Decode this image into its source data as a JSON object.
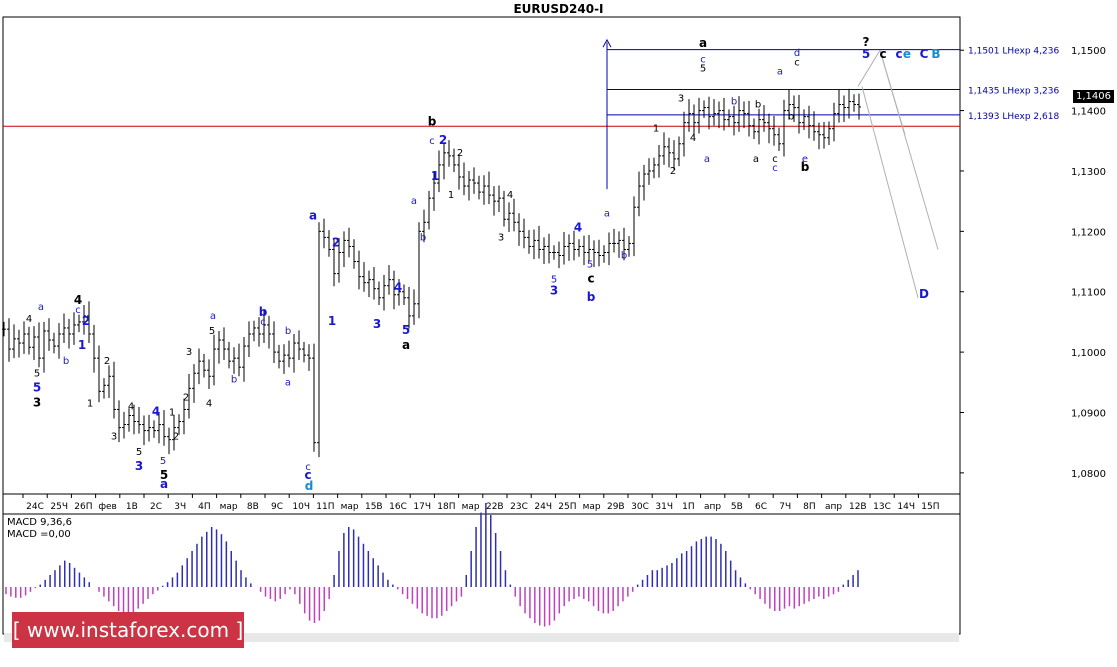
{
  "title": "EURUSD240-I",
  "current_price": "1,1406",
  "macd": {
    "label_line1": "MACD 9,36,6",
    "label_line2": "MACD =0,00"
  },
  "watermark": "[ www.instaforex.com ]",
  "colors": {
    "price_line": "#cc0000",
    "level_line": "#0000aa",
    "macd_positive": "#2f2fb0",
    "macd_negative": "#c040c0",
    "wave_blue": "#1a1acc",
    "wave_cyan": "#1a8ad0",
    "watermark_bg": "#cc3344"
  },
  "chart_data": {
    "type": "candlestick",
    "symbol": "EURUSD240-I",
    "y_ticks": [
      "1,1500",
      "1,1400",
      "1,1300",
      "1,1200",
      "1,1100",
      "1,1000",
      "1,0900",
      "1,0800"
    ],
    "ylim": [
      1.0765,
      1.1555
    ],
    "x_ticks": [
      "24С",
      "25Ч",
      "26П",
      "фев",
      "1В",
      "2С",
      "3Ч",
      "4П",
      "мар",
      "8В",
      "9С",
      "10Ч",
      "11П",
      "мар",
      "15В",
      "16С",
      "17Ч",
      "18П",
      "мар",
      "22В",
      "23С",
      "24Ч",
      "25П",
      "мар",
      "29В",
      "30С",
      "31Ч",
      "1П",
      "апр",
      "5В",
      "6С",
      "7Ч",
      "8П",
      "апр",
      "12В",
      "13С",
      "14Ч",
      "15П"
    ],
    "levels": [
      {
        "price": 1.1501,
        "label": "1,1501 LHexp 4,236"
      },
      {
        "price": 1.1435,
        "label": "1,1435 LHexp 3,236"
      },
      {
        "price": 1.1393,
        "label": "1,1393 LHexp 2,618"
      }
    ],
    "horizontal_line": 1.1374,
    "price_series": [
      [
        0,
        1.1038
      ],
      [
        5,
        1.1005
      ],
      [
        10,
        1.1022
      ],
      [
        15,
        1.1015
      ],
      [
        20,
        1.103
      ],
      [
        25,
        1.1008
      ],
      [
        30,
        1.1025
      ],
      [
        35,
        1.099
      ],
      [
        40,
        1.1035
      ],
      [
        45,
        1.102
      ],
      [
        50,
        1.101
      ],
      [
        55,
        1.103
      ],
      [
        60,
        1.104
      ],
      [
        65,
        1.103
      ],
      [
        70,
        1.1045
      ],
      [
        75,
        1.105
      ],
      [
        80,
        1.106
      ],
      [
        85,
        1.103
      ],
      [
        90,
        1.099
      ],
      [
        95,
        1.0935
      ],
      [
        100,
        1.0945
      ],
      [
        105,
        1.096
      ],
      [
        110,
        1.0905
      ],
      [
        115,
        1.0875
      ],
      [
        120,
        1.088
      ],
      [
        125,
        1.0895
      ],
      [
        130,
        1.0885
      ],
      [
        135,
        1.088
      ],
      [
        140,
        1.087
      ],
      [
        145,
        1.0875
      ],
      [
        150,
        1.087
      ],
      [
        155,
        1.088
      ],
      [
        160,
        1.086
      ],
      [
        165,
        1.0855
      ],
      [
        170,
        1.0875
      ],
      [
        175,
        1.0885
      ],
      [
        180,
        1.0905
      ],
      [
        185,
        1.094
      ],
      [
        190,
        1.0965
      ],
      [
        195,
        1.0985
      ],
      [
        200,
        1.097
      ],
      [
        205,
        1.096
      ],
      [
        210,
        1.1005
      ],
      [
        215,
        1.102
      ],
      [
        220,
        1.1005
      ],
      [
        225,
        1.0985
      ],
      [
        230,
        1.099
      ],
      [
        235,
        1.0975
      ],
      [
        240,
        1.101
      ],
      [
        245,
        1.103
      ],
      [
        250,
        1.104
      ],
      [
        255,
        1.103
      ],
      [
        260,
        1.1045
      ],
      [
        265,
        1.103
      ],
      [
        270,
        1.1
      ],
      [
        275,
        1.0985
      ],
      [
        280,
        1.0995
      ],
      [
        285,
        1.099
      ],
      [
        290,
        1.1015
      ],
      [
        295,
        1.1005
      ],
      [
        300,
        1.0995
      ],
      [
        305,
        1.099
      ],
      [
        310,
        1.085
      ],
      [
        315,
        1.12
      ],
      [
        320,
        1.119
      ],
      [
        325,
        1.117
      ],
      [
        330,
        1.113
      ],
      [
        335,
        1.1165
      ],
      [
        340,
        1.1185
      ],
      [
        345,
        1.1175
      ],
      [
        350,
        1.115
      ],
      [
        355,
        1.1125
      ],
      [
        360,
        1.1115
      ],
      [
        365,
        1.112
      ],
      [
        370,
        1.1105
      ],
      [
        375,
        1.109
      ],
      [
        380,
        1.111
      ],
      [
        385,
        1.112
      ],
      [
        390,
        1.1095
      ],
      [
        395,
        1.11
      ],
      [
        400,
        1.109
      ],
      [
        405,
        1.106
      ],
      [
        410,
        1.108
      ],
      [
        415,
        1.12
      ],
      [
        420,
        1.1215
      ],
      [
        425,
        1.1255
      ],
      [
        430,
        1.128
      ],
      [
        435,
        1.131
      ],
      [
        440,
        1.133
      ],
      [
        445,
        1.1325
      ],
      [
        450,
        1.131
      ],
      [
        455,
        1.129
      ],
      [
        460,
        1.1275
      ],
      [
        465,
        1.1285
      ],
      [
        470,
        1.128
      ],
      [
        475,
        1.1265
      ],
      [
        480,
        1.1275
      ],
      [
        485,
        1.126
      ],
      [
        490,
        1.125
      ],
      [
        495,
        1.1255
      ],
      [
        500,
        1.122
      ],
      [
        505,
        1.123
      ],
      [
        510,
        1.1215
      ],
      [
        515,
        1.12
      ],
      [
        520,
        1.119
      ],
      [
        525,
        1.1175
      ],
      [
        530,
        1.1185
      ],
      [
        535,
        1.117
      ],
      [
        540,
        1.1175
      ],
      [
        545,
        1.1165
      ],
      [
        550,
        1.1165
      ],
      [
        555,
        1.116
      ],
      [
        560,
        1.1175
      ],
      [
        565,
        1.118
      ],
      [
        570,
        1.117
      ],
      [
        575,
        1.1175
      ],
      [
        580,
        1.1165
      ],
      [
        585,
        1.117
      ],
      [
        590,
        1.1165
      ],
      [
        595,
        1.116
      ],
      [
        600,
        1.1165
      ],
      [
        605,
        1.118
      ],
      [
        610,
        1.118
      ],
      [
        615,
        1.1185
      ],
      [
        620,
        1.117
      ],
      [
        625,
        1.118
      ],
      [
        630,
        1.124
      ],
      [
        635,
        1.1275
      ],
      [
        640,
        1.1295
      ],
      [
        645,
        1.13
      ],
      [
        650,
        1.131
      ],
      [
        655,
        1.1325
      ],
      [
        660,
        1.134
      ],
      [
        665,
        1.133
      ],
      [
        670,
        1.132
      ],
      [
        675,
        1.1345
      ],
      [
        680,
        1.138
      ],
      [
        685,
        1.1395
      ],
      [
        690,
        1.138
      ],
      [
        695,
        1.14
      ],
      [
        700,
        1.1405
      ],
      [
        705,
        1.139
      ],
      [
        710,
        1.1395
      ],
      [
        715,
        1.14
      ],
      [
        720,
        1.1385
      ],
      [
        725,
        1.139
      ],
      [
        730,
        1.138
      ],
      [
        735,
        1.14
      ],
      [
        740,
        1.1395
      ],
      [
        745,
        1.1375
      ],
      [
        750,
        1.1365
      ],
      [
        755,
        1.1385
      ],
      [
        760,
        1.138
      ],
      [
        765,
        1.137
      ],
      [
        770,
        1.136
      ],
      [
        775,
        1.1345
      ],
      [
        780,
        1.14
      ],
      [
        785,
        1.141
      ],
      [
        790,
        1.1405
      ],
      [
        795,
        1.138
      ],
      [
        800,
        1.139
      ],
      [
        805,
        1.1375
      ],
      [
        810,
        1.1365
      ],
      [
        815,
        1.136
      ],
      [
        820,
        1.1355
      ],
      [
        825,
        1.137
      ],
      [
        830,
        1.1395
      ],
      [
        835,
        1.141
      ],
      [
        840,
        1.1405
      ],
      [
        845,
        1.1415
      ],
      [
        850,
        1.141
      ],
      [
        855,
        1.1406
      ]
    ],
    "wave_labels": [
      {
        "t": "4",
        "x": 29,
        "y": 1.105,
        "c": "k"
      },
      {
        "t": "a",
        "x": 41,
        "y": 1.107,
        "c": "b"
      },
      {
        "t": "5",
        "x": 37,
        "y": 1.096,
        "c": "k"
      },
      {
        "t": "5",
        "x": 37,
        "y": 1.0935,
        "c": "b",
        "big": 1
      },
      {
        "t": "3",
        "x": 37,
        "y": 1.091,
        "c": "k",
        "big": 1
      },
      {
        "t": "4",
        "x": 78,
        "y": 1.108,
        "c": "k",
        "big": 1
      },
      {
        "t": "c",
        "x": 78,
        "y": 1.1065,
        "c": "b"
      },
      {
        "t": "2",
        "x": 86,
        "y": 1.1045,
        "c": "b",
        "big": 1
      },
      {
        "t": "b",
        "x": 66,
        "y": 1.098,
        "c": "b"
      },
      {
        "t": "1",
        "x": 82,
        "y": 1.1005,
        "c": "b",
        "big": 1
      },
      {
        "t": "2",
        "x": 107,
        "y": 1.098,
        "c": "k"
      },
      {
        "t": "1",
        "x": 90,
        "y": 1.091,
        "c": "k"
      },
      {
        "t": "4",
        "x": 131,
        "y": 1.0905,
        "c": "k"
      },
      {
        "t": "3",
        "x": 114,
        "y": 1.0855,
        "c": "k"
      },
      {
        "t": "5",
        "x": 139,
        "y": 1.083,
        "c": "k"
      },
      {
        "t": "3",
        "x": 139,
        "y": 1.0805,
        "c": "b",
        "big": 1
      },
      {
        "t": "4",
        "x": 156,
        "y": 1.0895,
        "c": "b",
        "big": 1
      },
      {
        "t": "1",
        "x": 172,
        "y": 1.0895,
        "c": "k"
      },
      {
        "t": "2",
        "x": 176,
        "y": 1.0855,
        "c": "k"
      },
      {
        "t": "5",
        "x": 163,
        "y": 1.0815,
        "c": "b"
      },
      {
        "t": "5",
        "x": 164,
        "y": 1.079,
        "c": "k",
        "big": 1
      },
      {
        "t": "a",
        "x": 164,
        "y": 1.0775,
        "c": "b",
        "big": 1
      },
      {
        "t": "3",
        "x": 189,
        "y": 1.0995,
        "c": "k"
      },
      {
        "t": "2",
        "x": 186,
        "y": 1.092,
        "c": "k"
      },
      {
        "t": "a",
        "x": 213,
        "y": 1.1055,
        "c": "b"
      },
      {
        "t": "5",
        "x": 212,
        "y": 1.103,
        "c": "k"
      },
      {
        "t": "4",
        "x": 209,
        "y": 1.091,
        "c": "k"
      },
      {
        "t": "b",
        "x": 234,
        "y": 1.095,
        "c": "b"
      },
      {
        "t": "b",
        "x": 263,
        "y": 1.106,
        "c": "b",
        "big": 1
      },
      {
        "t": "c",
        "x": 263,
        "y": 1.1045,
        "c": "b"
      },
      {
        "t": "b",
        "x": 288,
        "y": 1.103,
        "c": "b"
      },
      {
        "t": "a",
        "x": 288,
        "y": 1.0945,
        "c": "b"
      },
      {
        "t": "c",
        "x": 308,
        "y": 1.0805,
        "c": "b"
      },
      {
        "t": "c",
        "x": 308,
        "y": 1.079,
        "c": "b",
        "big": 1
      },
      {
        "t": "d",
        "x": 309,
        "y": 1.0772,
        "c": "c",
        "big": 1
      },
      {
        "t": "a",
        "x": 313,
        "y": 1.122,
        "c": "b",
        "big": 1
      },
      {
        "t": "2",
        "x": 336,
        "y": 1.1175,
        "c": "b",
        "big": 1
      },
      {
        "t": "1",
        "x": 332,
        "y": 1.1045,
        "c": "b",
        "big": 1
      },
      {
        "t": "3",
        "x": 377,
        "y": 1.104,
        "c": "b",
        "big": 1
      },
      {
        "t": "4",
        "x": 398,
        "y": 1.11,
        "c": "b",
        "big": 1
      },
      {
        "t": "5",
        "x": 406,
        "y": 1.103,
        "c": "b",
        "big": 1
      },
      {
        "t": "a",
        "x": 406,
        "y": 1.1005,
        "c": "k",
        "big": 1
      },
      {
        "t": "a",
        "x": 414,
        "y": 1.1245,
        "c": "b"
      },
      {
        "t": "b",
        "x": 423,
        "y": 1.1185,
        "c": "b"
      },
      {
        "t": "1",
        "x": 435,
        "y": 1.1285,
        "c": "b",
        "big": 1
      },
      {
        "t": "c",
        "x": 432,
        "y": 1.1345,
        "c": "b"
      },
      {
        "t": "b",
        "x": 432,
        "y": 1.1375,
        "c": "k",
        "big": 1
      },
      {
        "t": "2",
        "x": 443,
        "y": 1.1345,
        "c": "b",
        "big": 1
      },
      {
        "t": "2",
        "x": 460,
        "y": 1.1325,
        "c": "k"
      },
      {
        "t": "1",
        "x": 451,
        "y": 1.1255,
        "c": "k"
      },
      {
        "t": "4",
        "x": 510,
        "y": 1.1255,
        "c": "k"
      },
      {
        "t": "3",
        "x": 501,
        "y": 1.1185,
        "c": "k"
      },
      {
        "t": "5",
        "x": 554,
        "y": 1.1115,
        "c": "b"
      },
      {
        "t": "3",
        "x": 554,
        "y": 1.1095,
        "c": "b",
        "big": 1
      },
      {
        "t": "4",
        "x": 578,
        "y": 1.12,
        "c": "b",
        "big": 1
      },
      {
        "t": "5",
        "x": 590,
        "y": 1.114,
        "c": "b"
      },
      {
        "t": "c",
        "x": 591,
        "y": 1.1115,
        "c": "k",
        "big": 1
      },
      {
        "t": "b",
        "x": 591,
        "y": 1.1085,
        "c": "b",
        "big": 1
      },
      {
        "t": "a",
        "x": 607,
        "y": 1.1225,
        "c": "b"
      },
      {
        "t": "b",
        "x": 624,
        "y": 1.1155,
        "c": "b"
      },
      {
        "t": "1",
        "x": 656,
        "y": 1.1365,
        "c": "k"
      },
      {
        "t": "2",
        "x": 673,
        "y": 1.1295,
        "c": "k"
      },
      {
        "t": "3",
        "x": 681,
        "y": 1.1415,
        "c": "k"
      },
      {
        "t": "4",
        "x": 693,
        "y": 1.135,
        "c": "k"
      },
      {
        "t": "a",
        "x": 707,
        "y": 1.1315,
        "c": "b"
      },
      {
        "t": "a",
        "x": 703,
        "y": 1.1505,
        "c": "k",
        "big": 1
      },
      {
        "t": "c",
        "x": 703,
        "y": 1.148,
        "c": "b"
      },
      {
        "t": "5",
        "x": 703,
        "y": 1.1465,
        "c": "k"
      },
      {
        "t": "b",
        "x": 734,
        "y": 1.141,
        "c": "b"
      },
      {
        "t": "b",
        "x": 758,
        "y": 1.1405,
        "c": "k"
      },
      {
        "t": "a",
        "x": 756,
        "y": 1.1315,
        "c": "k"
      },
      {
        "t": "c",
        "x": 775,
        "y": 1.1315,
        "c": "k"
      },
      {
        "t": "c",
        "x": 775,
        "y": 1.13,
        "c": "b"
      },
      {
        "t": "a",
        "x": 780,
        "y": 1.146,
        "c": "b"
      },
      {
        "t": "d",
        "x": 797,
        "y": 1.149,
        "c": "b"
      },
      {
        "t": "c",
        "x": 797,
        "y": 1.1475,
        "c": "k"
      },
      {
        "t": "b",
        "x": 791,
        "y": 1.1385,
        "c": "k"
      },
      {
        "t": "e",
        "x": 805,
        "y": 1.1315,
        "c": "b"
      },
      {
        "t": "b",
        "x": 805,
        "y": 1.13,
        "c": "k",
        "big": 1
      },
      {
        "t": "?",
        "x": 866,
        "y": 1.1507,
        "c": "k",
        "big": 1
      },
      {
        "t": "5",
        "x": 866,
        "y": 1.1487,
        "c": "b",
        "big": 1
      },
      {
        "t": "c",
        "x": 883,
        "y": 1.1487,
        "c": "k",
        "big": 1
      },
      {
        "t": "c",
        "x": 899,
        "y": 1.1487,
        "c": "b",
        "big": 1
      },
      {
        "t": "e",
        "x": 907,
        "y": 1.1487,
        "c": "c",
        "big": 1
      },
      {
        "t": "C",
        "x": 924,
        "y": 1.1487,
        "c": "b",
        "big": 1
      },
      {
        "t": "B",
        "x": 936,
        "y": 1.1487,
        "c": "c",
        "big": 1
      },
      {
        "t": "D",
        "x": 924,
        "y": 1.109,
        "c": "b",
        "big": 1
      }
    ],
    "macd_histogram": [
      -6,
      -8,
      -9,
      -9,
      -7,
      -4,
      -1,
      2,
      6,
      10,
      14,
      18,
      22,
      20,
      16,
      12,
      8,
      4,
      0,
      -4,
      -8,
      -12,
      -16,
      -20,
      -23,
      -25,
      -22,
      -18,
      -14,
      -10,
      -6,
      -3,
      1,
      4,
      8,
      12,
      18,
      24,
      30,
      36,
      42,
      46,
      50,
      48,
      44,
      38,
      30,
      22,
      14,
      8,
      3,
      0,
      -4,
      -8,
      -10,
      -12,
      -10,
      -6,
      -2,
      -6,
      -14,
      -22,
      -28,
      -30,
      -28,
      -20,
      -10,
      10,
      30,
      45,
      50,
      48,
      42,
      36,
      30,
      24,
      18,
      12,
      6,
      2,
      -2,
      -6,
      -10,
      -14,
      -18,
      -22,
      -24,
      -26,
      -26,
      -24,
      -20,
      -16,
      -12,
      -8,
      10,
      30,
      50,
      62,
      70,
      60,
      45,
      30,
      14,
      2,
      -8,
      -16,
      -22,
      -26,
      -30,
      -32,
      -33,
      -32,
      -28,
      -22,
      -16,
      -12,
      -10,
      -8,
      -10,
      -12,
      -16,
      -20,
      -22,
      -22,
      -20,
      -16,
      -12,
      -8,
      -4,
      2,
      6,
      10,
      14,
      14,
      16,
      18,
      20,
      24,
      28,
      30,
      34,
      38,
      40,
      42,
      42,
      40,
      36,
      30,
      22,
      14,
      8,
      3,
      -2,
      -6,
      -10,
      -14,
      -18,
      -20,
      -20,
      -18,
      -16,
      -18,
      -16,
      -14,
      -12,
      -10,
      -8,
      -10,
      -8,
      -6,
      -4,
      2,
      6,
      10,
      14
    ]
  }
}
